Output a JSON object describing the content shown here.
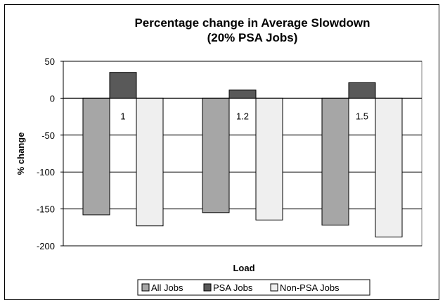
{
  "chart_data": {
    "type": "bar",
    "title": "Percentage change in Average Slowdown",
    "subtitle": "(20% PSA Jobs)",
    "xlabel": "Load",
    "ylabel": "% change",
    "categories": [
      "1",
      "1.2",
      "1.5"
    ],
    "series": [
      {
        "name": "All Jobs",
        "values": [
          -158,
          -155,
          -172
        ]
      },
      {
        "name": "PSA Jobs",
        "values": [
          35,
          11,
          21
        ]
      },
      {
        "name": "Non-PSA Jobs",
        "values": [
          -173,
          -165,
          -188
        ]
      }
    ],
    "ylim": [
      -200,
      50
    ],
    "yticks": [
      "50",
      "0",
      "-50",
      "-100",
      "-150",
      "-200"
    ],
    "grid": true,
    "legend": "bottom",
    "colors": {
      "series": [
        "#a6a6a6",
        "#595959",
        "#efefef"
      ],
      "plot_background": "#ffffff",
      "grid": "#000000"
    }
  }
}
